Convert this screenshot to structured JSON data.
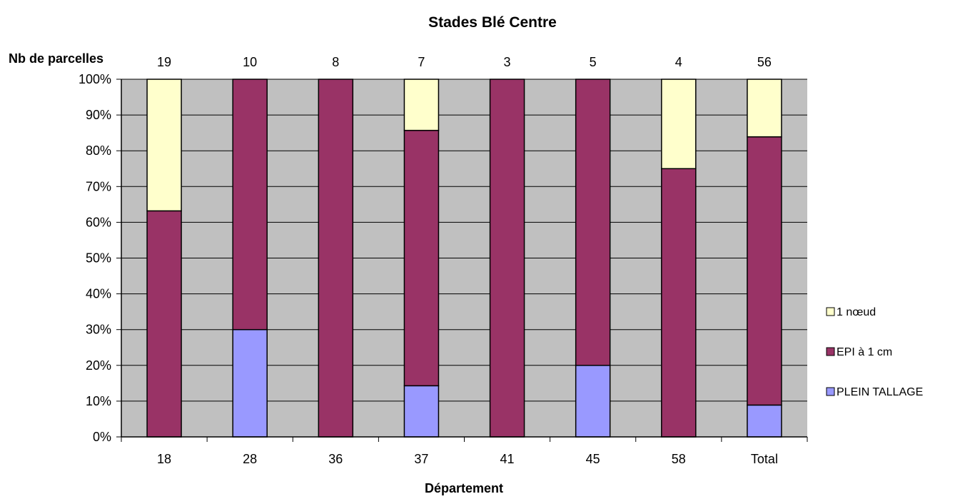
{
  "chart_data": {
    "type": "bar",
    "stacked": true,
    "normalized": true,
    "title": "Stades Blé Centre",
    "xlabel": "Département",
    "ylabel": "",
    "count_label": "Nb de parcelles",
    "categories": [
      "18",
      "28",
      "36",
      "37",
      "41",
      "45",
      "58",
      "Total"
    ],
    "counts": [
      "19",
      "10",
      "8",
      "7",
      "3",
      "5",
      "4",
      "56"
    ],
    "ylim": [
      0,
      100
    ],
    "yticks": [
      "0%",
      "10%",
      "20%",
      "30%",
      "40%",
      "50%",
      "60%",
      "70%",
      "80%",
      "90%",
      "100%"
    ],
    "grid": true,
    "legend_position": "right",
    "series": [
      {
        "name": "PLEIN TALLAGE",
        "color": "#9999ff",
        "values": [
          0,
          30,
          0,
          14.3,
          0,
          20,
          0,
          8.9
        ]
      },
      {
        "name": "EPI à 1 cm",
        "color": "#993366",
        "values": [
          63.2,
          70,
          100,
          71.4,
          100,
          80,
          75,
          75
        ]
      },
      {
        "name": "1 nœud",
        "color": "#ffffcc",
        "values": [
          36.8,
          0,
          0,
          14.3,
          0,
          0,
          25,
          16.1
        ]
      }
    ],
    "legend_order": [
      "1 nœud",
      "EPI à 1 cm",
      "PLEIN TALLAGE"
    ]
  }
}
